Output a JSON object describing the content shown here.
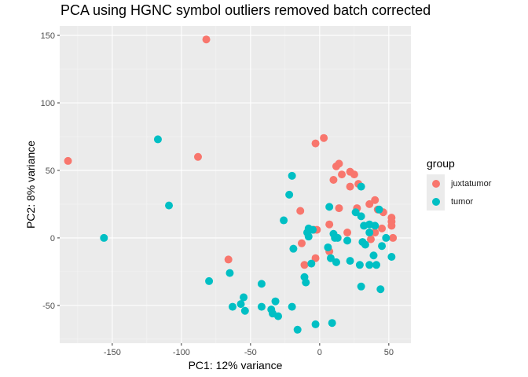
{
  "chart_data": {
    "type": "scatter",
    "title": "PCA using HGNC symbol outliers removed batch corrected",
    "xlabel": "PC1: 12% variance",
    "ylabel": "PC2: 8% variance",
    "xlim": [
      -188,
      66
    ],
    "ylim": [
      -78,
      157
    ],
    "xticks": [
      -150,
      -100,
      -50,
      0,
      50
    ],
    "yticks": [
      -50,
      0,
      50,
      100,
      150
    ],
    "xticklabels": [
      "-150",
      "-100",
      "-50",
      "0",
      "50"
    ],
    "yticklabels": [
      "-50",
      "0",
      "50",
      "100",
      "150"
    ],
    "grid": true,
    "legend": {
      "title": "group",
      "placement": "right"
    },
    "series": [
      {
        "name": "juxtatumor",
        "color": "#F8766D",
        "points": [
          [
            -82,
            147
          ],
          [
            -182,
            57
          ],
          [
            -88,
            60
          ],
          [
            -66,
            -16
          ],
          [
            3,
            74
          ],
          [
            -3,
            70
          ],
          [
            12,
            53
          ],
          [
            14,
            55
          ],
          [
            10,
            43
          ],
          [
            16,
            47
          ],
          [
            22,
            49
          ],
          [
            25,
            47
          ],
          [
            22,
            38
          ],
          [
            28,
            40
          ],
          [
            14,
            22
          ],
          [
            27,
            22
          ],
          [
            36,
            25
          ],
          [
            40,
            28
          ],
          [
            42,
            21
          ],
          [
            46,
            19
          ],
          [
            52,
            15
          ],
          [
            52,
            12
          ],
          [
            52,
            9
          ],
          [
            53,
            0
          ],
          [
            45,
            7
          ],
          [
            40,
            4
          ],
          [
            -14,
            20
          ],
          [
            -13,
            -4
          ],
          [
            -3,
            -15
          ],
          [
            -11,
            -20
          ],
          [
            -2,
            6
          ],
          [
            7,
            10
          ],
          [
            20,
            4
          ],
          [
            -4,
            6
          ],
          [
            7,
            -10
          ],
          [
            37,
            -1
          ]
        ]
      },
      {
        "name": "tumor",
        "color": "#00BFC4",
        "points": [
          [
            -117,
            73
          ],
          [
            -109,
            24
          ],
          [
            -156,
            0
          ],
          [
            -80,
            -32
          ],
          [
            -65,
            -26
          ],
          [
            -63,
            -51
          ],
          [
            -57,
            -49
          ],
          [
            -54,
            -54
          ],
          [
            -55,
            -44
          ],
          [
            -42,
            -34
          ],
          [
            -42,
            -51
          ],
          [
            -35,
            -53
          ],
          [
            -34,
            -56
          ],
          [
            -32,
            -47
          ],
          [
            -30,
            -58
          ],
          [
            -20,
            -51
          ],
          [
            -16,
            -68
          ],
          [
            -3,
            -64
          ],
          [
            9,
            -63
          ],
          [
            -10,
            -33
          ],
          [
            -11,
            -29
          ],
          [
            -6,
            -19
          ],
          [
            -19,
            -8
          ],
          [
            -26,
            13
          ],
          [
            -22,
            32
          ],
          [
            -20,
            46
          ],
          [
            -8,
            7
          ],
          [
            -7,
            6
          ],
          [
            -9,
            4
          ],
          [
            -8,
            1
          ],
          [
            -5,
            6
          ],
          [
            7,
            23
          ],
          [
            30,
            38
          ],
          [
            26,
            19
          ],
          [
            30,
            16
          ],
          [
            32,
            9
          ],
          [
            36,
            10
          ],
          [
            40,
            9
          ],
          [
            43,
            21
          ],
          [
            36,
            4
          ],
          [
            48,
            0
          ],
          [
            31,
            -3
          ],
          [
            33,
            -5
          ],
          [
            45,
            -6
          ],
          [
            39,
            -13
          ],
          [
            36,
            -20
          ],
          [
            29,
            -20
          ],
          [
            41,
            -20
          ],
          [
            30,
            -36
          ],
          [
            44,
            -38
          ],
          [
            52,
            -14
          ],
          [
            20,
            -2
          ],
          [
            10,
            3
          ],
          [
            13,
            0
          ],
          [
            6,
            -7
          ],
          [
            8,
            -15
          ],
          [
            12,
            -18
          ],
          [
            22,
            -17
          ],
          [
            11,
            0
          ]
        ]
      }
    ]
  }
}
